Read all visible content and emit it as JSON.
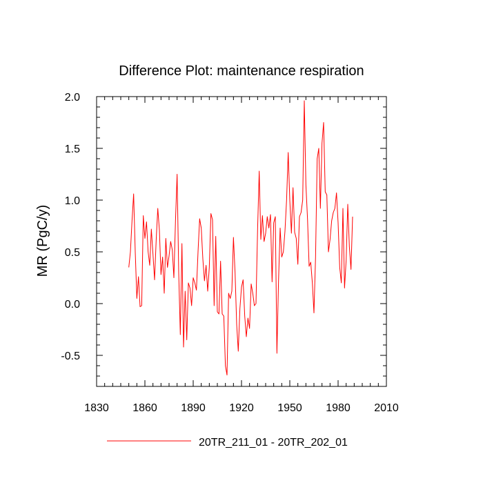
{
  "chart_data": {
    "type": "line",
    "title": "Difference Plot: maintenance respiration",
    "xlabel": "",
    "ylabel": "MR  (PgC/y)",
    "xlim": [
      1830,
      2010
    ],
    "ylim": [
      -0.8,
      2.0
    ],
    "xticks": [
      1830,
      1860,
      1890,
      1920,
      1950,
      1980,
      2010
    ],
    "xtick_labels": [
      "1830",
      "1860",
      "1890",
      "1920",
      "1950",
      "1980",
      "2010"
    ],
    "yticks": [
      -0.5,
      0.0,
      0.5,
      1.0,
      1.5,
      2.0
    ],
    "ytick_labels": [
      "-0.5",
      "0.0",
      "0.5",
      "1.0",
      "1.5",
      "2.0"
    ],
    "grid": false,
    "legend_position": "bottom-center",
    "series": [
      {
        "name": "20TR_211_01 - 20TR_202_01",
        "color": "#ff0000",
        "x": [
          1850,
          1851,
          1852,
          1853,
          1854,
          1855,
          1856,
          1857,
          1858,
          1859,
          1860,
          1861,
          1862,
          1863,
          1864,
          1865,
          1866,
          1867,
          1868,
          1869,
          1870,
          1871,
          1872,
          1873,
          1874,
          1875,
          1876,
          1877,
          1878,
          1879,
          1880,
          1881,
          1882,
          1883,
          1884,
          1885,
          1886,
          1887,
          1888,
          1889,
          1890,
          1891,
          1892,
          1893,
          1894,
          1895,
          1896,
          1897,
          1898,
          1899,
          1900,
          1901,
          1902,
          1903,
          1904,
          1905,
          1906,
          1907,
          1908,
          1909,
          1910,
          1911,
          1912,
          1913,
          1914,
          1915,
          1916,
          1917,
          1918,
          1919,
          1920,
          1921,
          1922,
          1923,
          1924,
          1925,
          1926,
          1927,
          1928,
          1929,
          1930,
          1931,
          1932,
          1933,
          1934,
          1935,
          1936,
          1937,
          1938,
          1939,
          1940,
          1941,
          1942,
          1943,
          1944,
          1945,
          1946,
          1947,
          1948,
          1949,
          1950,
          1951,
          1952,
          1953,
          1954,
          1955,
          1956,
          1957,
          1958,
          1959,
          1960,
          1961,
          1962,
          1963,
          1964,
          1965,
          1966,
          1967,
          1968,
          1969,
          1970,
          1971,
          1972,
          1973,
          1974,
          1975,
          1976,
          1977,
          1978,
          1979,
          1980,
          1981,
          1982,
          1983,
          1984,
          1985,
          1986,
          1987,
          1988,
          1989
        ],
        "y": [
          0.35,
          0.5,
          0.8,
          1.06,
          0.5,
          0.05,
          0.26,
          -0.03,
          -0.02,
          0.85,
          0.63,
          0.79,
          0.5,
          0.37,
          0.72,
          0.48,
          0.23,
          0.61,
          0.92,
          0.71,
          0.28,
          0.45,
          0.1,
          0.63,
          0.35,
          0.46,
          0.6,
          0.52,
          0.25,
          0.8,
          1.25,
          0.3,
          -0.3,
          0.58,
          -0.42,
          0.12,
          -0.35,
          0.2,
          0.15,
          -0.02,
          0.25,
          0.2,
          0.13,
          0.5,
          0.82,
          0.73,
          0.43,
          0.22,
          0.37,
          0.12,
          0.35,
          0.87,
          0.81,
          -0.02,
          0.65,
          -0.08,
          -0.1,
          0.41,
          -0.1,
          -0.12,
          -0.6,
          -0.69,
          0.1,
          0.05,
          0.12,
          0.64,
          0.3,
          -0.2,
          -0.46,
          -0.05,
          0.16,
          0.23,
          -0.12,
          -0.32,
          -0.14,
          -0.24,
          0.19,
          0.1,
          -0.02,
          0.0,
          0.72,
          1.28,
          0.62,
          0.85,
          0.6,
          0.68,
          0.84,
          0.73,
          0.86,
          0.21,
          0.78,
          0.84,
          -0.48,
          0.22,
          0.73,
          0.45,
          0.5,
          0.7,
          1.0,
          1.46,
          1.0,
          0.68,
          1.12,
          0.69,
          0.63,
          0.38,
          0.84,
          0.88,
          1.0,
          1.96,
          1.15,
          0.82,
          0.36,
          0.4,
          0.2,
          -0.09,
          0.45,
          1.4,
          1.5,
          0.92,
          1.55,
          1.75,
          1.08,
          1.05,
          0.5,
          0.62,
          0.8,
          0.88,
          0.92,
          1.07,
          0.78,
          0.35,
          0.2,
          0.92,
          0.15,
          0.42,
          0.96,
          0.55,
          0.33,
          0.84
        ]
      }
    ]
  }
}
